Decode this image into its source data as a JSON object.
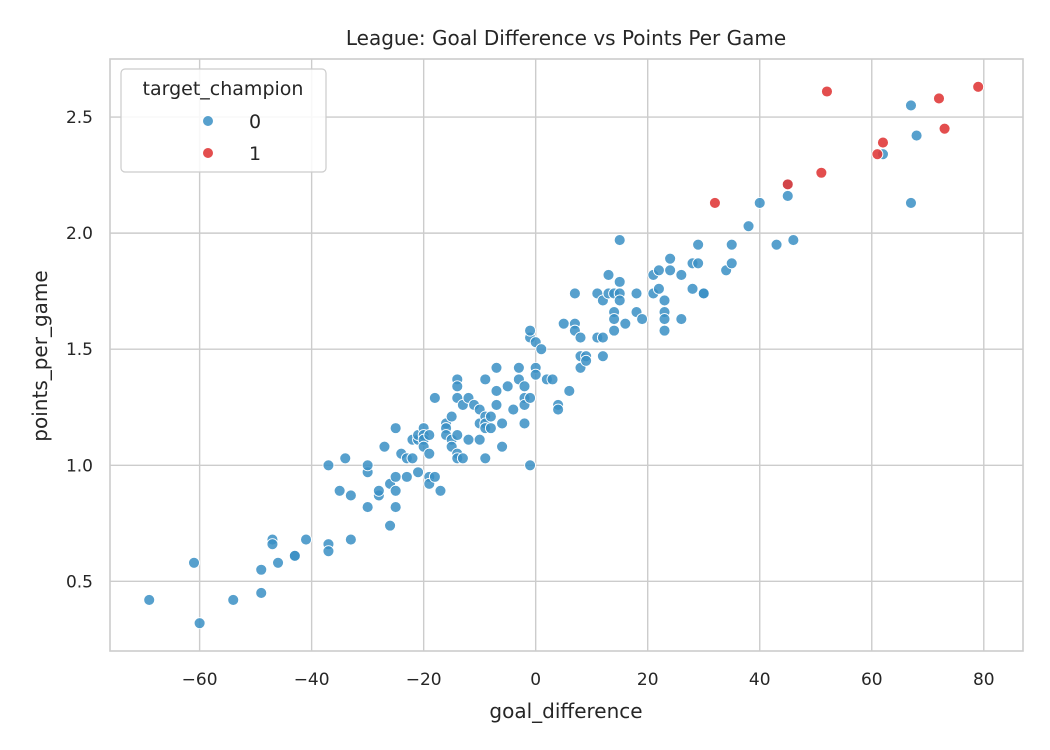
{
  "chart_data": {
    "type": "scatter",
    "title": "League: Goal Difference vs Points Per Game",
    "xlabel": "goal_difference",
    "ylabel": "points_per_game",
    "xlim": [
      -76,
      87
    ],
    "ylim": [
      0.2,
      2.75
    ],
    "xticks": [
      -60,
      -40,
      -20,
      0,
      20,
      40,
      60,
      80
    ],
    "yticks": [
      0.5,
      1.0,
      1.5,
      2.0,
      2.5
    ],
    "xtick_labels": [
      "−60",
      "−40",
      "−20",
      "0",
      "20",
      "40",
      "60",
      "80"
    ],
    "ytick_labels": [
      "0.5",
      "1.0",
      "1.5",
      "2.0",
      "2.5"
    ],
    "grid": true,
    "legend": {
      "title": "target_champion",
      "placement": "top-left",
      "entries": [
        "0",
        "1"
      ]
    },
    "series": [
      {
        "name": "0",
        "color": "#3a8fc4",
        "points": [
          [
            -69,
            0.42
          ],
          [
            -61,
            0.58
          ],
          [
            -60,
            0.32
          ],
          [
            -54,
            0.42
          ],
          [
            -49,
            0.55
          ],
          [
            -49,
            0.45
          ],
          [
            -47,
            0.68
          ],
          [
            -47,
            0.66
          ],
          [
            -46,
            0.58
          ],
          [
            -43,
            0.61
          ],
          [
            -43,
            0.61
          ],
          [
            -41,
            0.68
          ],
          [
            -37,
            1.0
          ],
          [
            -37,
            0.66
          ],
          [
            -37,
            0.63
          ],
          [
            -35,
            0.89
          ],
          [
            -34,
            1.03
          ],
          [
            -33,
            0.87
          ],
          [
            -33,
            0.68
          ],
          [
            -30,
            0.97
          ],
          [
            -30,
            1.0
          ],
          [
            -30,
            0.82
          ],
          [
            -28,
            0.87
          ],
          [
            -28,
            0.89
          ],
          [
            -27,
            1.08
          ],
          [
            -26,
            0.74
          ],
          [
            -26,
            0.92
          ],
          [
            -25,
            0.95
          ],
          [
            -25,
            0.89
          ],
          [
            -25,
            0.82
          ],
          [
            -25,
            1.16
          ],
          [
            -24,
            1.05
          ],
          [
            -23,
            1.03
          ],
          [
            -23,
            0.95
          ],
          [
            -22,
            1.11
          ],
          [
            -22,
            1.03
          ],
          [
            -21,
            1.11
          ],
          [
            -21,
            1.13
          ],
          [
            -21,
            0.97
          ],
          [
            -20,
            1.16
          ],
          [
            -20,
            1.13
          ],
          [
            -20,
            1.11
          ],
          [
            -20,
            1.08
          ],
          [
            -19,
            1.05
          ],
          [
            -19,
            1.13
          ],
          [
            -19,
            0.95
          ],
          [
            -19,
            0.92
          ],
          [
            -18,
            0.95
          ],
          [
            -18,
            1.29
          ],
          [
            -17,
            0.89
          ],
          [
            -16,
            1.18
          ],
          [
            -16,
            1.16
          ],
          [
            -16,
            1.13
          ],
          [
            -15,
            1.21
          ],
          [
            -15,
            1.11
          ],
          [
            -15,
            1.08
          ],
          [
            -14,
            1.37
          ],
          [
            -14,
            1.34
          ],
          [
            -14,
            1.29
          ],
          [
            -14,
            1.13
          ],
          [
            -14,
            1.05
          ],
          [
            -14,
            1.03
          ],
          [
            -13,
            1.26
          ],
          [
            -13,
            1.03
          ],
          [
            -12,
            1.29
          ],
          [
            -12,
            1.11
          ],
          [
            -11,
            1.26
          ],
          [
            -10,
            1.24
          ],
          [
            -10,
            1.18
          ],
          [
            -10,
            1.11
          ],
          [
            -9,
            1.37
          ],
          [
            -9,
            1.21
          ],
          [
            -9,
            1.18
          ],
          [
            -9,
            1.16
          ],
          [
            -9,
            1.03
          ],
          [
            -8,
            1.21
          ],
          [
            -8,
            1.16
          ],
          [
            -7,
            1.42
          ],
          [
            -7,
            1.32
          ],
          [
            -7,
            1.26
          ],
          [
            -6,
            1.18
          ],
          [
            -6,
            1.08
          ],
          [
            -5,
            1.34
          ],
          [
            -4,
            1.24
          ],
          [
            -3,
            1.42
          ],
          [
            -3,
            1.37
          ],
          [
            -2,
            1.34
          ],
          [
            -2,
            1.29
          ],
          [
            -2,
            1.26
          ],
          [
            -2,
            1.18
          ],
          [
            -1,
            1.29
          ],
          [
            -1,
            1.55
          ],
          [
            -1,
            1.58
          ],
          [
            -1,
            1.0
          ],
          [
            0,
            1.42
          ],
          [
            0,
            1.39
          ],
          [
            0,
            1.53
          ],
          [
            1,
            1.5
          ],
          [
            2,
            1.37
          ],
          [
            3,
            1.37
          ],
          [
            4,
            1.26
          ],
          [
            4,
            1.24
          ],
          [
            5,
            1.61
          ],
          [
            6,
            1.32
          ],
          [
            7,
            1.74
          ],
          [
            7,
            1.61
          ],
          [
            7,
            1.58
          ],
          [
            8,
            1.55
          ],
          [
            8,
            1.47
          ],
          [
            8,
            1.42
          ],
          [
            9,
            1.47
          ],
          [
            9,
            1.45
          ],
          [
            11,
            1.74
          ],
          [
            11,
            1.55
          ],
          [
            12,
            1.71
          ],
          [
            12,
            1.55
          ],
          [
            12,
            1.47
          ],
          [
            13,
            1.82
          ],
          [
            13,
            1.74
          ],
          [
            14,
            1.74
          ],
          [
            14,
            1.66
          ],
          [
            14,
            1.63
          ],
          [
            14,
            1.58
          ],
          [
            15,
            1.79
          ],
          [
            15,
            1.74
          ],
          [
            15,
            1.71
          ],
          [
            15,
            1.97
          ],
          [
            16,
            1.61
          ],
          [
            18,
            1.74
          ],
          [
            18,
            1.66
          ],
          [
            19,
            1.63
          ],
          [
            21,
            1.82
          ],
          [
            21,
            1.74
          ],
          [
            22,
            1.84
          ],
          [
            22,
            1.76
          ],
          [
            23,
            1.71
          ],
          [
            23,
            1.66
          ],
          [
            23,
            1.63
          ],
          [
            23,
            1.58
          ],
          [
            24,
            1.89
          ],
          [
            24,
            1.84
          ],
          [
            26,
            1.82
          ],
          [
            26,
            1.63
          ],
          [
            28,
            1.87
          ],
          [
            28,
            1.76
          ],
          [
            29,
            1.95
          ],
          [
            29,
            1.87
          ],
          [
            30,
            1.74
          ],
          [
            30,
            1.74
          ],
          [
            34,
            1.84
          ],
          [
            35,
            1.95
          ],
          [
            35,
            1.87
          ],
          [
            38,
            2.03
          ],
          [
            40,
            2.13
          ],
          [
            43,
            1.95
          ],
          [
            45,
            2.16
          ],
          [
            45,
            2.21
          ],
          [
            46,
            1.97
          ],
          [
            62,
            2.34
          ],
          [
            67,
            2.55
          ],
          [
            67,
            2.13
          ],
          [
            68,
            2.42
          ]
        ]
      },
      {
        "name": "1",
        "color": "#e03b3b",
        "points": [
          [
            32,
            2.13
          ],
          [
            45,
            2.21
          ],
          [
            51,
            2.26
          ],
          [
            52,
            2.61
          ],
          [
            61,
            2.34
          ],
          [
            62,
            2.39
          ],
          [
            72,
            2.58
          ],
          [
            73,
            2.45
          ],
          [
            79,
            2.63
          ]
        ]
      }
    ]
  }
}
